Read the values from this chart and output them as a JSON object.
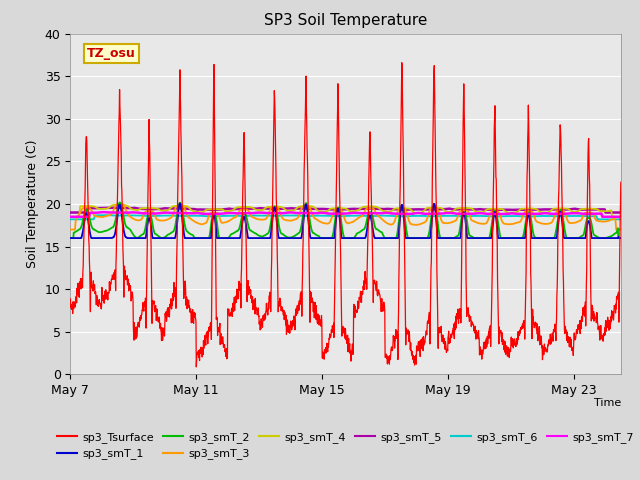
{
  "title": "SP3 Soil Temperature",
  "ylabel": "Soil Temperature (C)",
  "xlabel": "Time",
  "ylim": [
    0,
    40
  ],
  "xlim_days": [
    0,
    17.5
  ],
  "x_ticks_labels": [
    "May 7",
    "May 11",
    "May 15",
    "May 19",
    "May 23"
  ],
  "x_ticks_pos": [
    0,
    4,
    8,
    12,
    16
  ],
  "annotation_text": "TZ_osu",
  "annotation_bg": "#ffffcc",
  "annotation_border": "#ccaa00",
  "fig_bg": "#d9d9d9",
  "plot_bg": "#e8e8e8",
  "series_colors": {
    "sp3_Tsurface": "#ff0000",
    "sp3_smT_1": "#0000cc",
    "sp3_smT_2": "#00bb00",
    "sp3_smT_3": "#ff9900",
    "sp3_smT_4": "#cccc00",
    "sp3_smT_5": "#aa00aa",
    "sp3_smT_6": "#00cccc",
    "sp3_smT_7": "#ff00ff"
  }
}
